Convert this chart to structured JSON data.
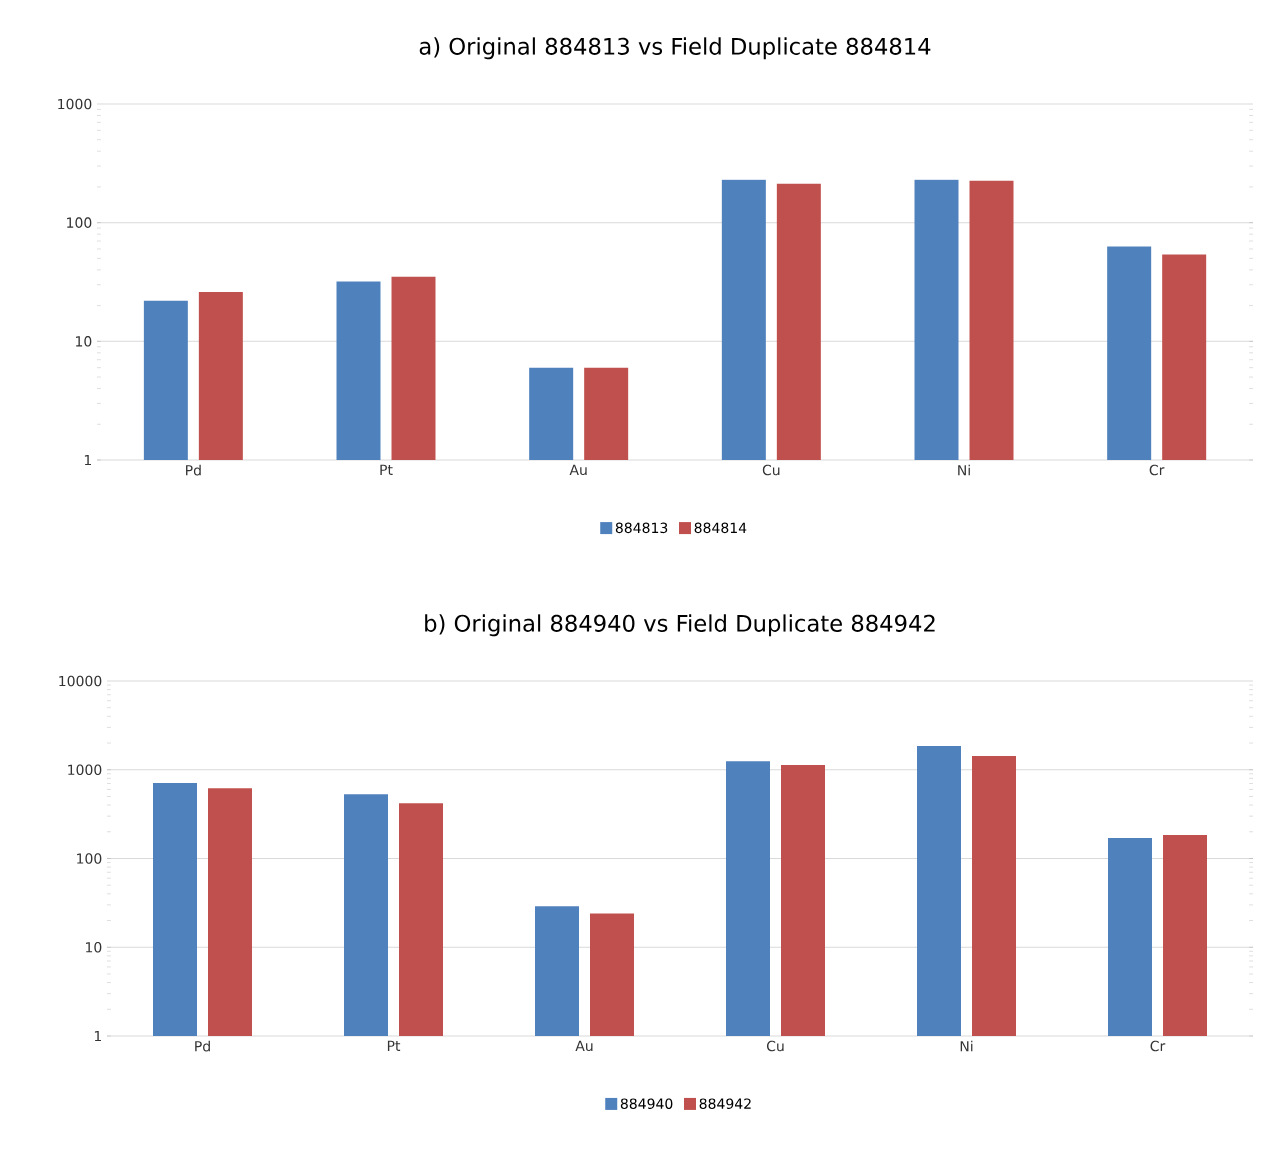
{
  "chart_data": [
    {
      "type": "bar",
      "title": "a) Original 884813 vs Field Duplicate 884814",
      "categories": [
        "Pd",
        "Pt",
        "Au",
        "Cu",
        "Ni",
        "Cr"
      ],
      "series": [
        {
          "name": "884813",
          "color": "#4f81bd",
          "values": [
            22,
            32,
            6,
            230,
            230,
            63
          ]
        },
        {
          "name": "884814",
          "color": "#c0504d",
          "values": [
            26,
            35,
            6,
            213,
            226,
            54
          ]
        }
      ],
      "ylim": [
        1,
        1000
      ],
      "yticks": [
        1,
        10,
        100,
        1000
      ],
      "log": "y",
      "grid": "y",
      "legend": "bottom"
    },
    {
      "type": "bar",
      "title": "b) Original 884940 vs Field Duplicate 884942",
      "categories": [
        "Pd",
        "Pt",
        "Au",
        "Cu",
        "Ni",
        "Cr"
      ],
      "series": [
        {
          "name": "884940",
          "color": "#4f81bd",
          "values": [
            710,
            530,
            29,
            1250,
            1850,
            170
          ]
        },
        {
          "name": "884942",
          "color": "#c0504d",
          "values": [
            620,
            420,
            24,
            1130,
            1430,
            184
          ]
        }
      ],
      "ylim": [
        1,
        10000
      ],
      "yticks": [
        1,
        10,
        100,
        1000,
        10000
      ],
      "log": "y",
      "grid": "y",
      "legend": "bottom"
    }
  ]
}
